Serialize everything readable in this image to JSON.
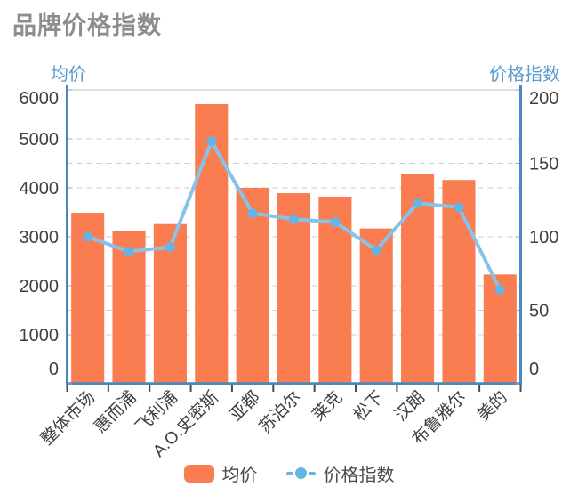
{
  "title": "品牌价格指数",
  "chart_data": {
    "type": "bar",
    "subtype": "bar-line-combo",
    "title": "品牌价格指数",
    "categories": [
      "整体市场",
      "惠而浦",
      "飞利浦",
      "A.O.史密斯",
      "亚都",
      "苏泊尔",
      "莱克",
      "松下",
      "汉朗",
      "布鲁雅尔",
      "美的"
    ],
    "series": [
      {
        "name": "均价",
        "type": "bar",
        "y_axis": "left",
        "color": "#F97D51",
        "values": [
          3490,
          3120,
          3260,
          5710,
          4000,
          3890,
          3820,
          3170,
          4290,
          4160,
          2230
        ]
      },
      {
        "name": "价格指数",
        "type": "line",
        "y_axis": "right",
        "color": "#86C3EA",
        "marker_color": "#68B3E3",
        "values": [
          100,
          90,
          93,
          165,
          116,
          112,
          110,
          91,
          123,
          120,
          64
        ]
      }
    ],
    "left_axis": {
      "name": "均价",
      "min": 0,
      "max": 6000,
      "ticks": [
        0,
        1000,
        2000,
        3000,
        4000,
        5000,
        6000
      ]
    },
    "right_axis": {
      "name": "价格指数",
      "min": 0,
      "max": 200,
      "ticks": [
        0,
        50,
        100,
        150,
        200
      ]
    },
    "x_label_rotation_deg": 45,
    "grid": {
      "horizontal_gridlines": true,
      "style": "dashed"
    },
    "legend": {
      "position": "bottom-center",
      "items": [
        "均价",
        "价格指数"
      ]
    }
  },
  "colors": {
    "background": "#FFFFFF",
    "bar": "#F97D51",
    "line": "#86C3EA",
    "marker": "#68B3E3",
    "axis_line": "#4C86C0",
    "gridline": "#CCCCCC",
    "title_text": "#8D8D8D",
    "axis_name_text": "#5D9BCD",
    "tick_text": "#3F3F3F",
    "x_tick_mark": "#4A4A4A",
    "legend_text": "#4A4A4A"
  }
}
